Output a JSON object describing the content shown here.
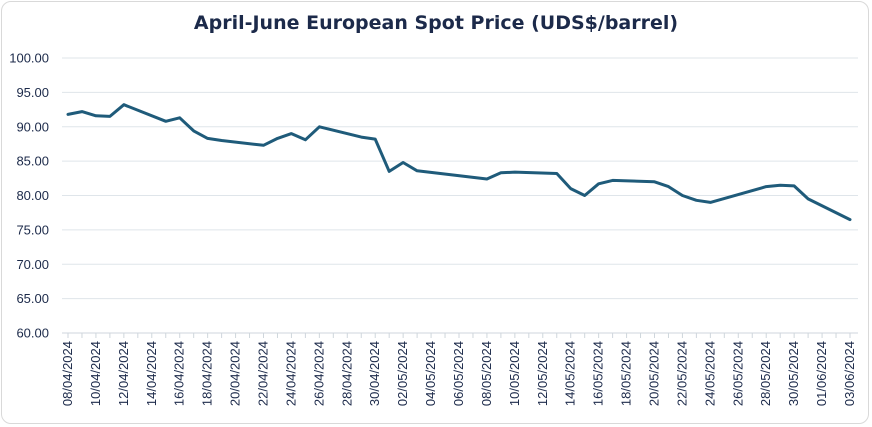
{
  "chart_data": {
    "type": "line",
    "title": "April-June European Spot Price (UDS$/barrel)",
    "xlabel": "",
    "ylabel": "",
    "ylim": [
      60,
      100
    ],
    "y_ticks": [
      "60.00",
      "65.00",
      "70.00",
      "75.00",
      "80.00",
      "85.00",
      "90.00",
      "95.00",
      "100.00"
    ],
    "grid": true,
    "legend": "none",
    "line_color": "#1f5b7a",
    "x_tick_labels": [
      "08/04/2024",
      "10/04/2024",
      "12/04/2024",
      "14/04/2024",
      "16/04/2024",
      "18/04/2024",
      "20/04/2024",
      "22/04/2024",
      "24/04/2024",
      "26/04/2024",
      "28/04/2024",
      "30/04/2024",
      "02/05/2024",
      "04/05/2024",
      "06/05/2024",
      "08/05/2024",
      "10/05/2024",
      "12/05/2024",
      "14/05/2024",
      "16/05/2024",
      "18/05/2024",
      "20/05/2024",
      "22/05/2024",
      "24/05/2024",
      "26/05/2024",
      "28/05/2024",
      "30/05/2024",
      "01/06/2024",
      "03/06/2024"
    ],
    "series": [
      {
        "x": [
          "08/04/2024",
          "09/04/2024",
          "10/04/2024",
          "11/04/2024",
          "12/04/2024",
          "15/04/2024",
          "16/04/2024",
          "17/04/2024",
          "18/04/2024",
          "19/04/2024",
          "22/04/2024",
          "23/04/2024",
          "24/04/2024",
          "25/04/2024",
          "26/04/2024",
          "29/04/2024",
          "30/04/2024",
          "01/05/2024",
          "02/05/2024",
          "03/05/2024",
          "08/05/2024",
          "09/05/2024",
          "10/05/2024",
          "13/05/2024",
          "14/05/2024",
          "15/05/2024",
          "16/05/2024",
          "17/05/2024",
          "20/05/2024",
          "21/05/2024",
          "22/05/2024",
          "23/05/2024",
          "24/05/2024",
          "28/05/2024",
          "29/05/2024",
          "30/05/2024",
          "31/05/2024",
          "03/06/2024"
        ],
        "values": [
          91.8,
          92.2,
          91.6,
          91.5,
          93.2,
          90.8,
          91.3,
          89.4,
          88.3,
          88.0,
          87.3,
          88.3,
          89.0,
          88.1,
          90.0,
          88.5,
          88.2,
          83.5,
          84.8,
          83.6,
          82.4,
          83.3,
          83.4,
          83.2,
          81.0,
          80.0,
          81.7,
          82.2,
          82.0,
          81.3,
          80.0,
          79.3,
          79.0,
          81.3,
          81.5,
          81.4,
          79.5,
          76.5
        ]
      }
    ]
  }
}
